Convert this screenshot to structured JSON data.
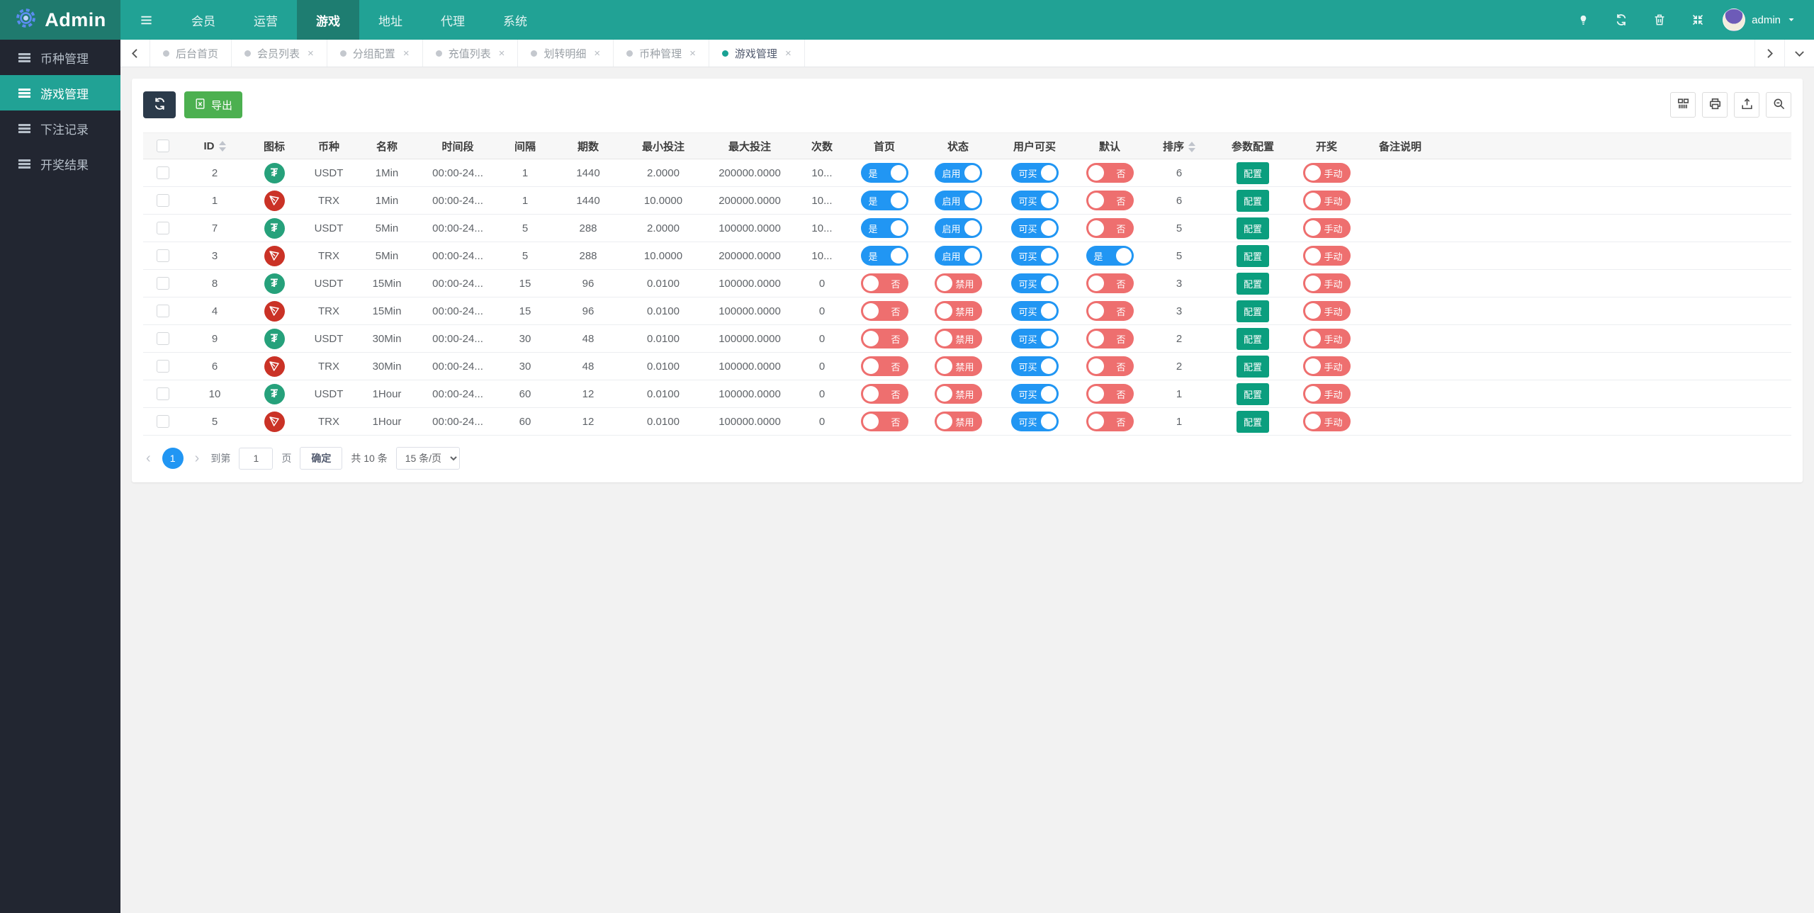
{
  "colors": {
    "navbar_teal": "#21a295",
    "navbar_dark_teal": "#1e7d71",
    "brand_bg": "#1f7a6e",
    "sidebar_dark": "#222631",
    "sidebar_active": "#21a295",
    "page_bg": "#f2f2f2",
    "toggle_on_blue": "#2196f3",
    "toggle_off_red": "#ee6f6f",
    "config_green": "#0b9e7e",
    "export_green": "#4cb050",
    "refresh_dark": "#2b3a4a",
    "usdt_green": "#26a17b",
    "trx_red": "#ca3226",
    "pager_blue": "#2196f3"
  },
  "navbar": {
    "brand": "Admin",
    "menu": [
      {
        "icon": "menu"
      },
      {
        "label": "会员"
      },
      {
        "label": "运营"
      },
      {
        "label": "游戏",
        "active": true
      },
      {
        "label": "地址"
      },
      {
        "label": "代理"
      },
      {
        "label": "系统"
      }
    ],
    "actions": [
      "lamp",
      "refresh",
      "trash",
      "fullscreen"
    ],
    "user": "admin"
  },
  "sidebar": {
    "items": [
      {
        "label": "币种管理",
        "active": false
      },
      {
        "label": "游戏管理",
        "active": true
      },
      {
        "label": "下注记录",
        "active": false
      },
      {
        "label": "开奖结果",
        "active": false
      }
    ]
  },
  "tabs": [
    {
      "label": "后台首页",
      "closable": false,
      "active": false
    },
    {
      "label": "会员列表",
      "closable": true,
      "active": false
    },
    {
      "label": "分组配置",
      "closable": true,
      "active": false
    },
    {
      "label": "充值列表",
      "closable": true,
      "active": false
    },
    {
      "label": "划转明细",
      "closable": true,
      "active": false
    },
    {
      "label": "币种管理",
      "closable": true,
      "active": false
    },
    {
      "label": "游戏管理",
      "closable": true,
      "active": true
    }
  ],
  "toolbar": {
    "export_label": "导出",
    "right_icons": [
      "columns",
      "print",
      "export",
      "search"
    ]
  },
  "table": {
    "headers": [
      {
        "label": "ID",
        "sortable": true
      },
      {
        "label": "图标"
      },
      {
        "label": "币种"
      },
      {
        "label": "名称"
      },
      {
        "label": "时间段"
      },
      {
        "label": "间隔"
      },
      {
        "label": "期数"
      },
      {
        "label": "最小投注"
      },
      {
        "label": "最大投注"
      },
      {
        "label": "次数"
      },
      {
        "label": "首页"
      },
      {
        "label": "状态"
      },
      {
        "label": "用户可买"
      },
      {
        "label": "默认"
      },
      {
        "label": "排序",
        "sortable": true
      },
      {
        "label": "参数配置"
      },
      {
        "label": "开奖"
      },
      {
        "label": "备注说明"
      }
    ],
    "rows": [
      {
        "id": "2",
        "icon": "usdt",
        "coin": "USDT",
        "name": "1Min",
        "time_range": "00:00-24...",
        "interval": "1",
        "periods": "1440",
        "min_bet": "2.0000",
        "max_bet": "200000.0000",
        "times": "10...",
        "home": {
          "state": "on",
          "label": "是"
        },
        "status": {
          "state": "on",
          "label": "启用"
        },
        "user_buy": {
          "state": "on",
          "label": "可买"
        },
        "default": {
          "state": "off",
          "label": "否"
        },
        "sort": "6",
        "config": "配置",
        "draw": {
          "state": "off",
          "label": "手动"
        },
        "remark": ""
      },
      {
        "id": "1",
        "icon": "trx",
        "coin": "TRX",
        "name": "1Min",
        "time_range": "00:00-24...",
        "interval": "1",
        "periods": "1440",
        "min_bet": "10.0000",
        "max_bet": "200000.0000",
        "times": "10...",
        "home": {
          "state": "on",
          "label": "是"
        },
        "status": {
          "state": "on",
          "label": "启用"
        },
        "user_buy": {
          "state": "on",
          "label": "可买"
        },
        "default": {
          "state": "off",
          "label": "否"
        },
        "sort": "6",
        "config": "配置",
        "draw": {
          "state": "off",
          "label": "手动"
        },
        "remark": ""
      },
      {
        "id": "7",
        "icon": "usdt",
        "coin": "USDT",
        "name": "5Min",
        "time_range": "00:00-24...",
        "interval": "5",
        "periods": "288",
        "min_bet": "2.0000",
        "max_bet": "100000.0000",
        "times": "10...",
        "home": {
          "state": "on",
          "label": "是"
        },
        "status": {
          "state": "on",
          "label": "启用"
        },
        "user_buy": {
          "state": "on",
          "label": "可买"
        },
        "default": {
          "state": "off",
          "label": "否"
        },
        "sort": "5",
        "config": "配置",
        "draw": {
          "state": "off",
          "label": "手动"
        },
        "remark": ""
      },
      {
        "id": "3",
        "icon": "trx",
        "coin": "TRX",
        "name": "5Min",
        "time_range": "00:00-24...",
        "interval": "5",
        "periods": "288",
        "min_bet": "10.0000",
        "max_bet": "200000.0000",
        "times": "10...",
        "home": {
          "state": "on",
          "label": "是"
        },
        "status": {
          "state": "on",
          "label": "启用"
        },
        "user_buy": {
          "state": "on",
          "label": "可买"
        },
        "default": {
          "state": "on",
          "label": "是"
        },
        "sort": "5",
        "config": "配置",
        "draw": {
          "state": "off",
          "label": "手动"
        },
        "remark": ""
      },
      {
        "id": "8",
        "icon": "usdt",
        "coin": "USDT",
        "name": "15Min",
        "time_range": "00:00-24...",
        "interval": "15",
        "periods": "96",
        "min_bet": "0.0100",
        "max_bet": "100000.0000",
        "times": "0",
        "home": {
          "state": "off",
          "label": "否"
        },
        "status": {
          "state": "off",
          "label": "禁用"
        },
        "user_buy": {
          "state": "on",
          "label": "可买"
        },
        "default": {
          "state": "off",
          "label": "否"
        },
        "sort": "3",
        "config": "配置",
        "draw": {
          "state": "off",
          "label": "手动"
        },
        "remark": ""
      },
      {
        "id": "4",
        "icon": "trx",
        "coin": "TRX",
        "name": "15Min",
        "time_range": "00:00-24...",
        "interval": "15",
        "periods": "96",
        "min_bet": "0.0100",
        "max_bet": "100000.0000",
        "times": "0",
        "home": {
          "state": "off",
          "label": "否"
        },
        "status": {
          "state": "off",
          "label": "禁用"
        },
        "user_buy": {
          "state": "on",
          "label": "可买"
        },
        "default": {
          "state": "off",
          "label": "否"
        },
        "sort": "3",
        "config": "配置",
        "draw": {
          "state": "off",
          "label": "手动"
        },
        "remark": ""
      },
      {
        "id": "9",
        "icon": "usdt",
        "coin": "USDT",
        "name": "30Min",
        "time_range": "00:00-24...",
        "interval": "30",
        "periods": "48",
        "min_bet": "0.0100",
        "max_bet": "100000.0000",
        "times": "0",
        "home": {
          "state": "off",
          "label": "否"
        },
        "status": {
          "state": "off",
          "label": "禁用"
        },
        "user_buy": {
          "state": "on",
          "label": "可买"
        },
        "default": {
          "state": "off",
          "label": "否"
        },
        "sort": "2",
        "config": "配置",
        "draw": {
          "state": "off",
          "label": "手动"
        },
        "remark": ""
      },
      {
        "id": "6",
        "icon": "trx",
        "coin": "TRX",
        "name": "30Min",
        "time_range": "00:00-24...",
        "interval": "30",
        "periods": "48",
        "min_bet": "0.0100",
        "max_bet": "100000.0000",
        "times": "0",
        "home": {
          "state": "off",
          "label": "否"
        },
        "status": {
          "state": "off",
          "label": "禁用"
        },
        "user_buy": {
          "state": "on",
          "label": "可买"
        },
        "default": {
          "state": "off",
          "label": "否"
        },
        "sort": "2",
        "config": "配置",
        "draw": {
          "state": "off",
          "label": "手动"
        },
        "remark": ""
      },
      {
        "id": "10",
        "icon": "usdt",
        "coin": "USDT",
        "name": "1Hour",
        "time_range": "00:00-24...",
        "interval": "60",
        "periods": "12",
        "min_bet": "0.0100",
        "max_bet": "100000.0000",
        "times": "0",
        "home": {
          "state": "off",
          "label": "否"
        },
        "status": {
          "state": "off",
          "label": "禁用"
        },
        "user_buy": {
          "state": "on",
          "label": "可买"
        },
        "default": {
          "state": "off",
          "label": "否"
        },
        "sort": "1",
        "config": "配置",
        "draw": {
          "state": "off",
          "label": "手动"
        },
        "remark": ""
      },
      {
        "id": "5",
        "icon": "trx",
        "coin": "TRX",
        "name": "1Hour",
        "time_range": "00:00-24...",
        "interval": "60",
        "periods": "12",
        "min_bet": "0.0100",
        "max_bet": "100000.0000",
        "times": "0",
        "home": {
          "state": "off",
          "label": "否"
        },
        "status": {
          "state": "off",
          "label": "禁用"
        },
        "user_buy": {
          "state": "on",
          "label": "可买"
        },
        "default": {
          "state": "off",
          "label": "否"
        },
        "sort": "1",
        "config": "配置",
        "draw": {
          "state": "off",
          "label": "手动"
        },
        "remark": ""
      }
    ]
  },
  "pagination": {
    "prev": "‹",
    "page": "1",
    "next": "›",
    "goto_prefix": "到第",
    "goto_value": "1",
    "goto_suffix": "页",
    "confirm_label": "确定",
    "total_label": "共 10 条",
    "page_size_label": "15 条/页"
  }
}
